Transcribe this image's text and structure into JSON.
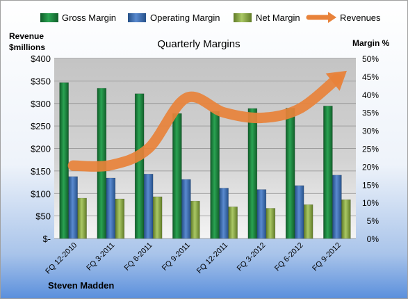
{
  "chart_data": {
    "type": "bar",
    "title": "Quarterly Margins",
    "company": "Steven Madden",
    "left_axis": {
      "title_line1": "Revenue",
      "title_line2": "$millions",
      "min": 0,
      "max": 400,
      "step": 50,
      "ticks": [
        "$-",
        "$50",
        "$100",
        "$150",
        "$200",
        "$250",
        "$300",
        "$350",
        "$400"
      ]
    },
    "right_axis": {
      "title": "Margin %",
      "min": 0,
      "max": 50,
      "step": 5,
      "ticks": [
        "0%",
        "5%",
        "10%",
        "15%",
        "20%",
        "25%",
        "30%",
        "35%",
        "40%",
        "45%",
        "50%"
      ]
    },
    "categories": [
      "FQ 12-2010",
      "FQ 3-2011",
      "FQ 6-2011",
      "FQ 9-2011",
      "FQ 12-2011",
      "FQ 3-2012",
      "FQ 6-2012",
      "FQ 9-2012"
    ],
    "series": [
      {
        "name": "Gross Margin",
        "axis": "right",
        "type": "bar",
        "color": "#1e7f3e",
        "values": [
          43.3,
          41.7,
          40.2,
          34.7,
          35.3,
          36.1,
          36.2,
          36.8
        ]
      },
      {
        "name": "Operating Margin",
        "axis": "right",
        "type": "bar",
        "color": "#3f6fae",
        "values": [
          17.2,
          16.8,
          17.9,
          16.4,
          14.0,
          13.6,
          14.7,
          17.6
        ]
      },
      {
        "name": "Net Margin",
        "axis": "right",
        "type": "bar",
        "color": "#8fae48",
        "values": [
          11.2,
          11.0,
          11.6,
          10.4,
          8.8,
          8.4,
          9.4,
          10.8
        ]
      },
      {
        "name": "Revenues",
        "axis": "left",
        "type": "line",
        "color": "#e8823a",
        "values": [
          162,
          163,
          200,
          312,
          280,
          268,
          288,
          355
        ]
      }
    ],
    "legend_position": "top",
    "grid": true
  }
}
